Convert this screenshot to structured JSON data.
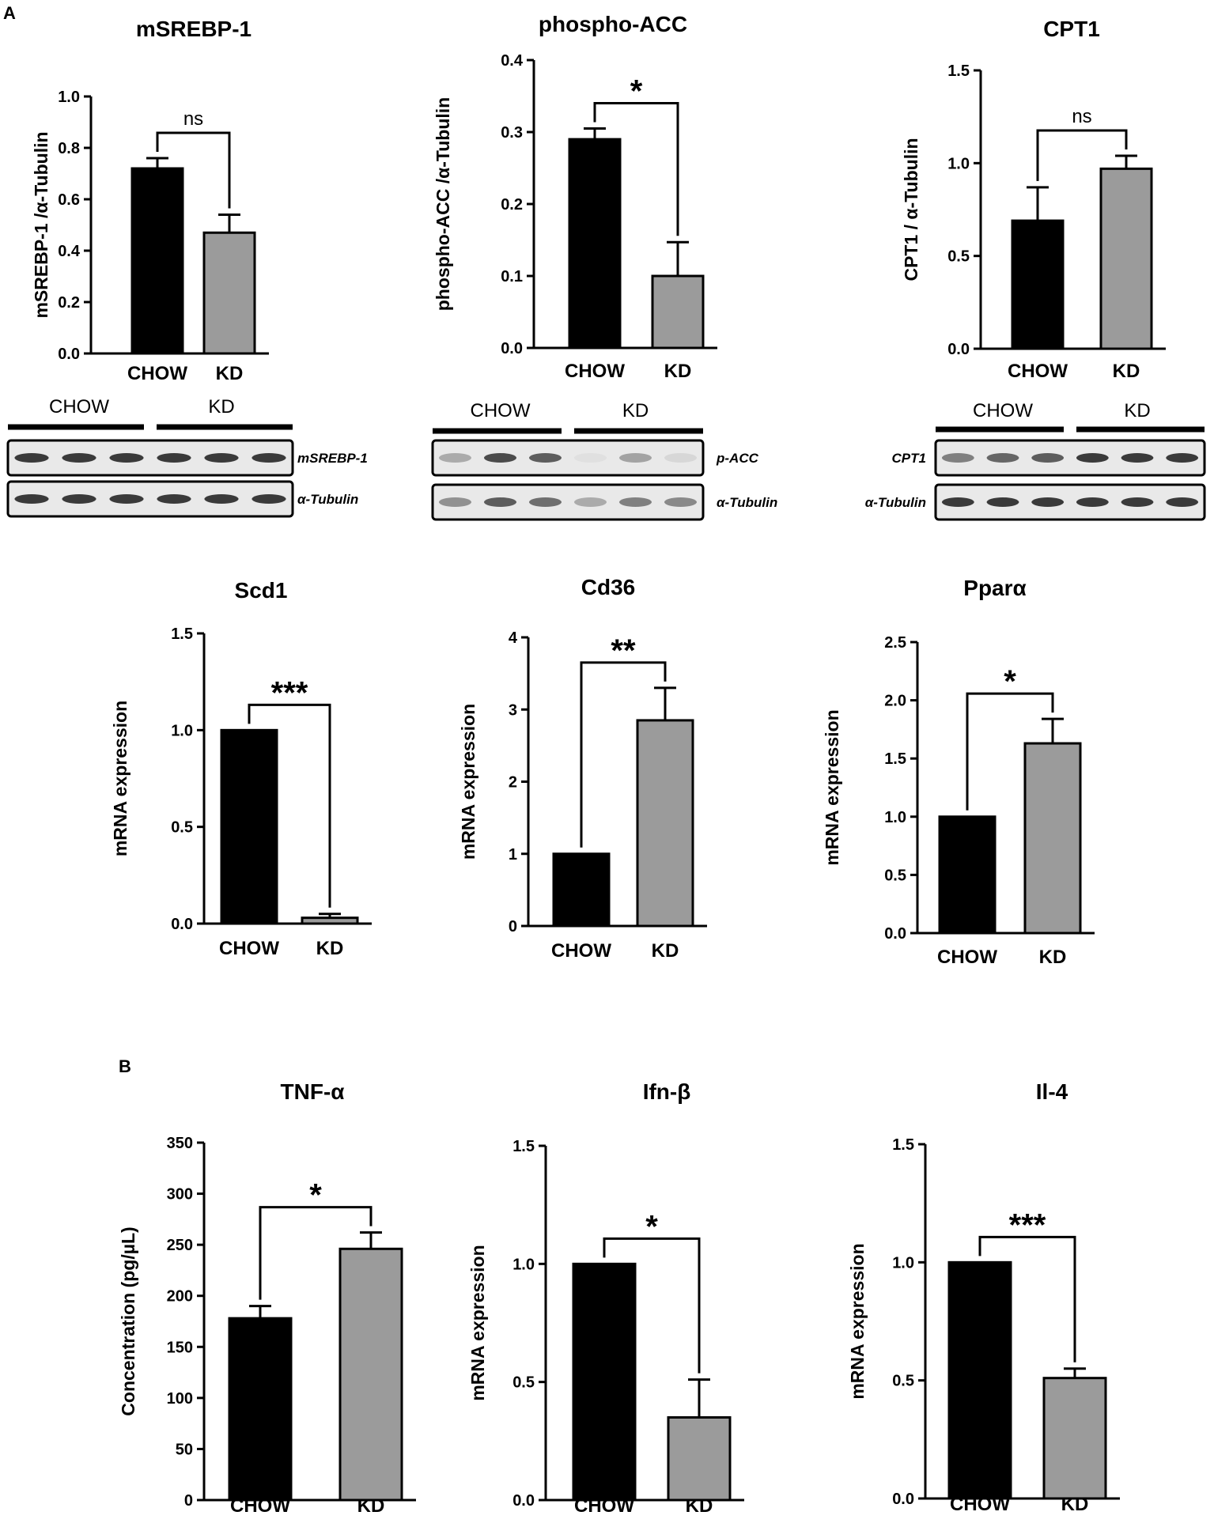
{
  "panel_labels": [
    "A",
    "B"
  ],
  "colors": {
    "chow": "#000000",
    "kd": "#9b9b9b",
    "axis": "#000000",
    "band": "#3a3a3a"
  },
  "chart_data": [
    {
      "type": "bar",
      "title": "mSREBP-1",
      "ylabel": "mSREBP-1 /α-Tubulin",
      "categories": [
        "CHOW",
        "KD"
      ],
      "values": [
        0.72,
        0.47
      ],
      "errors": [
        0.04,
        0.07
      ],
      "ylim": [
        0,
        1.0
      ],
      "ticks": [
        0.0,
        0.2,
        0.4,
        0.6,
        0.8,
        1.0
      ],
      "tick_decimals": 1,
      "significance": "ns"
    },
    {
      "type": "bar",
      "title": "phospho-ACC",
      "ylabel": "phospho-ACC /α-Tubulin",
      "categories": [
        "CHOW",
        "KD"
      ],
      "values": [
        0.29,
        0.1
      ],
      "errors": [
        0.015,
        0.047
      ],
      "ylim": [
        0,
        0.4
      ],
      "ticks": [
        0.0,
        0.1,
        0.2,
        0.3,
        0.4
      ],
      "tick_decimals": 1,
      "significance": "*"
    },
    {
      "type": "bar",
      "title": "CPT1",
      "ylabel": "CPT1 / α-Tubulin",
      "categories": [
        "CHOW",
        "KD"
      ],
      "values": [
        0.69,
        0.97
      ],
      "errors": [
        0.18,
        0.07
      ],
      "ylim": [
        0,
        1.5
      ],
      "ticks": [
        0.0,
        0.5,
        1.0,
        1.5
      ],
      "tick_decimals": 1,
      "significance": "ns"
    },
    {
      "type": "bar",
      "title": "Scd1",
      "ylabel": "mRNA expression",
      "categories": [
        "CHOW",
        "KD"
      ],
      "values": [
        1.0,
        0.03
      ],
      "errors": [
        0,
        0.02
      ],
      "ylim": [
        0,
        1.5
      ],
      "ticks": [
        0.0,
        0.5,
        1.0,
        1.5
      ],
      "tick_decimals": 1,
      "significance": "***"
    },
    {
      "type": "bar",
      "title": "Cd36",
      "ylabel": "mRNA expression",
      "categories": [
        "CHOW",
        "KD"
      ],
      "values": [
        1.0,
        2.85
      ],
      "errors": [
        0,
        0.45
      ],
      "ylim": [
        0,
        4
      ],
      "ticks": [
        0,
        1,
        2,
        3,
        4
      ],
      "tick_decimals": 0,
      "significance": "**"
    },
    {
      "type": "bar",
      "title": "Pparα",
      "ylabel": "mRNA expression",
      "categories": [
        "CHOW",
        "KD"
      ],
      "values": [
        1.0,
        1.63
      ],
      "errors": [
        0,
        0.21
      ],
      "ylim": [
        0,
        2.5
      ],
      "ticks": [
        0.0,
        0.5,
        1.0,
        1.5,
        2.0,
        2.5
      ],
      "tick_decimals": 1,
      "significance": "*"
    },
    {
      "type": "bar",
      "title": "TNF-α",
      "ylabel": "Concentration (pg/µL)",
      "categories": [
        "CHOW",
        "KD"
      ],
      "values": [
        178,
        246
      ],
      "errors": [
        12,
        16
      ],
      "ylim": [
        0,
        350
      ],
      "ticks": [
        0,
        50,
        100,
        150,
        200,
        250,
        300,
        350
      ],
      "tick_decimals": 0,
      "significance": "*"
    },
    {
      "type": "bar",
      "title": "Ifn-β",
      "ylabel": "mRNA expression",
      "categories": [
        "CHOW",
        "KD"
      ],
      "values": [
        1.0,
        0.35
      ],
      "errors": [
        0,
        0.16
      ],
      "ylim": [
        0,
        1.5
      ],
      "ticks": [
        0.0,
        0.5,
        1.0,
        1.5
      ],
      "tick_decimals": 1,
      "significance": "*"
    },
    {
      "type": "bar",
      "title": "Il-4",
      "ylabel": "mRNA expression",
      "categories": [
        "CHOW",
        "KD"
      ],
      "values": [
        1.0,
        0.51
      ],
      "errors": [
        0,
        0.04
      ],
      "ylim": [
        0,
        1.5
      ],
      "ticks": [
        0.0,
        0.5,
        1.0,
        1.5
      ],
      "tick_decimals": 1,
      "significance": "***"
    }
  ],
  "blots": [
    {
      "group_labels": [
        "CHOW",
        "KD"
      ],
      "rows": [
        "mSREBP-1",
        "α-Tubulin"
      ],
      "label_side": "right"
    },
    {
      "group_labels": [
        "CHOW",
        "KD"
      ],
      "rows": [
        "p-ACC",
        "α-Tubulin"
      ],
      "label_side": "right"
    },
    {
      "group_labels": [
        "CHOW",
        "KD"
      ],
      "rows": [
        "CPT1",
        "α-Tubulin"
      ],
      "label_side": "left"
    }
  ]
}
